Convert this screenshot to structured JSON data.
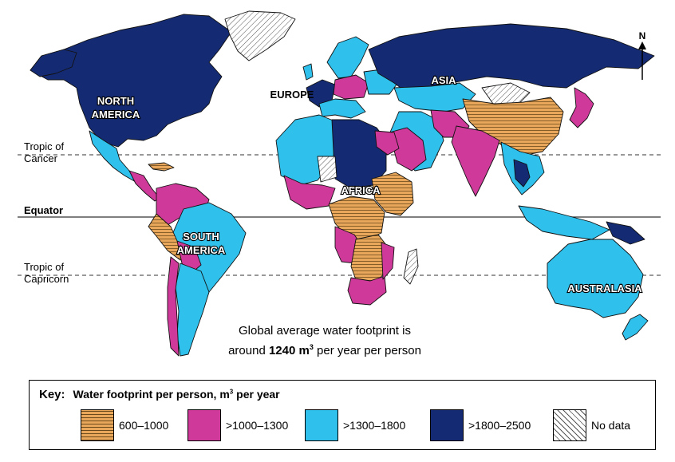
{
  "colors": {
    "band1": "#e8a75a",
    "band2": "#cf3a9a",
    "band3": "#2fc0ec",
    "band4": "#142b73",
    "nodata": "#ffffff",
    "water": "#ffffff"
  },
  "labels": {
    "north_america": [
      "NORTH",
      "AMERICA"
    ],
    "south_america": [
      "SOUTH",
      "AMERICA"
    ],
    "europe": "EUROPE",
    "asia": "ASIA",
    "africa": "AFRICA",
    "australasia": "AUSTRALASIA"
  },
  "lines": {
    "tropic_cancer": [
      "Tropic of",
      "Cancer"
    ],
    "equator": "Equator",
    "tropic_capricorn": [
      "Tropic of",
      "Capricorn"
    ]
  },
  "north_arrow": "N",
  "footnote": {
    "line1": "Global average water footprint is",
    "prefix": "around ",
    "value": "1240 m",
    "sup": "3",
    "suffix": " per year per person"
  },
  "key": {
    "label": "Key:",
    "title_main": "Water footprint per person, m",
    "title_sup": "3",
    "title_end": " per year",
    "items": [
      {
        "label": "600–1000",
        "pattern": "band1"
      },
      {
        "label": ">1000–1300",
        "pattern": "band2"
      },
      {
        "label": ">1300–1800",
        "pattern": "band3"
      },
      {
        "label": ">1800–2500",
        "pattern": "band4"
      },
      {
        "label": "No data",
        "pattern": "nodata"
      }
    ]
  }
}
